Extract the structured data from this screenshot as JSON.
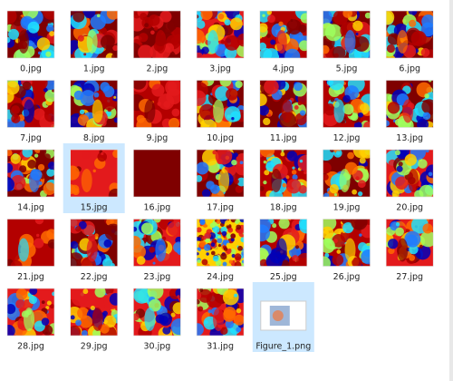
{
  "items": [
    {
      "name": "0.jpg"
    },
    {
      "name": "1.jpg"
    },
    {
      "name": "2.jpg"
    },
    {
      "name": "3.jpg"
    },
    {
      "name": "4.jpg"
    },
    {
      "name": "5.jpg"
    },
    {
      "name": "6.jpg"
    },
    {
      "name": "7.jpg"
    },
    {
      "name": "8.jpg"
    },
    {
      "name": "9.jpg"
    },
    {
      "name": "10.jpg"
    },
    {
      "name": "11.jpg"
    },
    {
      "name": "12.jpg"
    },
    {
      "name": "13.jpg"
    },
    {
      "name": "14.jpg"
    },
    {
      "name": "15.jpg",
      "selected": true
    },
    {
      "name": "16.jpg"
    },
    {
      "name": "17.jpg"
    },
    {
      "name": "18.jpg"
    },
    {
      "name": "19.jpg"
    },
    {
      "name": "20.jpg"
    },
    {
      "name": "21.jpg"
    },
    {
      "name": "22.jpg"
    },
    {
      "name": "23.jpg"
    },
    {
      "name": "24.jpg"
    },
    {
      "name": "25.jpg"
    },
    {
      "name": "26.jpg"
    },
    {
      "name": "27.jpg"
    },
    {
      "name": "28.jpg"
    },
    {
      "name": "29.jpg"
    },
    {
      "name": "30.jpg"
    },
    {
      "name": "31.jpg"
    },
    {
      "name": "Figure_1.png",
      "selected": true
    }
  ]
}
